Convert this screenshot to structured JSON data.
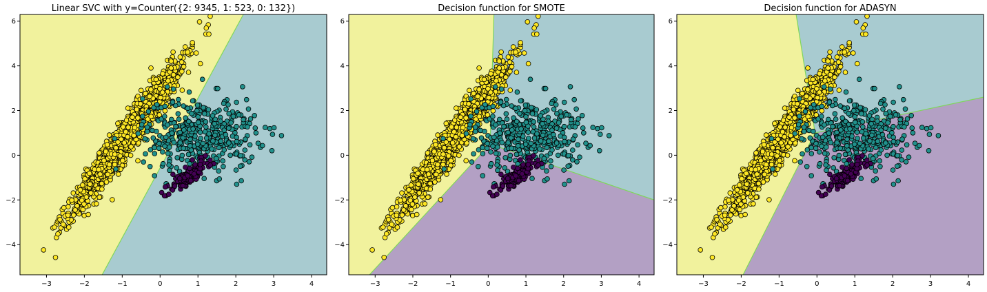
{
  "colors": {
    "yellow_region": "#f1f29d",
    "teal_region": "#a8cbd0",
    "purple_region": "#b3a0c4",
    "yellow_point": "#fde725",
    "teal_point": "#21918c",
    "purple_point": "#440154",
    "point_edge": "#000000",
    "boundary": "#7fd65a"
  },
  "chart_data": [
    {
      "type": "scatter",
      "title": "Linear SVC with y=Counter({2: 9345, 1: 523, 0: 132})",
      "xlim": [
        -3.7,
        4.4
      ],
      "ylim": [
        -5.35,
        6.3
      ],
      "xticks": [
        -3,
        -2,
        -1,
        0,
        1,
        2,
        3,
        4
      ],
      "yticks": [
        -4,
        -2,
        0,
        2,
        4,
        6
      ],
      "regions": [
        {
          "class": 2,
          "color": "#f1f29d",
          "polygon": [
            [
              -3.7,
              -5.35
            ],
            [
              -1.53,
              -5.35
            ],
            [
              2.2,
              6.3
            ],
            [
              -3.7,
              6.3
            ]
          ]
        },
        {
          "class": 1,
          "color": "#a8cbd0",
          "polygon": [
            [
              -1.53,
              -5.35
            ],
            [
              4.4,
              -5.35
            ],
            [
              4.4,
              6.3
            ],
            [
              2.2,
              6.3
            ]
          ]
        }
      ],
      "boundaries": [
        [
          [
            -1.53,
            -5.35
          ],
          [
            2.2,
            6.3
          ]
        ]
      ],
      "series": [
        {
          "class": 2,
          "color": "#fde725",
          "count": 9345
        },
        {
          "class": 1,
          "color": "#21918c",
          "count": 523
        },
        {
          "class": 0,
          "color": "#440154",
          "count": 132
        }
      ]
    },
    {
      "type": "scatter",
      "title": "Decision function for SMOTE",
      "xlim": [
        -3.7,
        4.4
      ],
      "ylim": [
        -5.35,
        6.3
      ],
      "xticks": [
        -3,
        -2,
        -1,
        0,
        1,
        2,
        3,
        4
      ],
      "yticks": [
        -4,
        -2,
        0,
        2,
        4,
        6
      ],
      "regions": [
        {
          "class": 2,
          "color": "#f1f29d",
          "polygon": [
            [
              -3.7,
              -5.35
            ],
            [
              -3.15,
              -5.35
            ],
            [
              0.05,
              0.5
            ],
            [
              0.15,
              6.3
            ],
            [
              -3.7,
              6.3
            ]
          ]
        },
        {
          "class": 1,
          "color": "#a8cbd0",
          "polygon": [
            [
              0.15,
              6.3
            ],
            [
              4.4,
              6.3
            ],
            [
              4.4,
              -2.0
            ],
            [
              0.05,
              0.5
            ]
          ]
        },
        {
          "class": 0,
          "color": "#b3a0c4",
          "polygon": [
            [
              -3.15,
              -5.35
            ],
            [
              4.4,
              -5.35
            ],
            [
              4.4,
              -2.0
            ],
            [
              0.05,
              0.5
            ]
          ]
        }
      ],
      "boundaries": [
        [
          [
            -3.15,
            -5.35
          ],
          [
            0.05,
            0.5
          ],
          [
            0.15,
            6.3
          ]
        ],
        [
          [
            0.05,
            0.5
          ],
          [
            4.4,
            -2.0
          ]
        ]
      ],
      "series": [
        {
          "class": 2,
          "color": "#fde725"
        },
        {
          "class": 1,
          "color": "#21918c"
        },
        {
          "class": 0,
          "color": "#440154"
        }
      ]
    },
    {
      "type": "scatter",
      "title": "Decision function for ADASYN",
      "xlim": [
        -3.7,
        4.4
      ],
      "ylim": [
        -5.35,
        6.3
      ],
      "xticks": [
        -3,
        -2,
        -1,
        0,
        1,
        2,
        3,
        4
      ],
      "yticks": [
        -4,
        -2,
        0,
        2,
        4,
        6
      ],
      "regions": [
        {
          "class": 2,
          "color": "#f1f29d",
          "polygon": [
            [
              -3.7,
              -5.35
            ],
            [
              -1.95,
              -5.35
            ],
            [
              -0.05,
              1.0
            ],
            [
              -0.55,
              6.3
            ],
            [
              -3.7,
              6.3
            ]
          ]
        },
        {
          "class": 1,
          "color": "#a8cbd0",
          "polygon": [
            [
              -0.55,
              6.3
            ],
            [
              4.4,
              6.3
            ],
            [
              4.4,
              2.6
            ],
            [
              -0.05,
              1.0
            ]
          ]
        },
        {
          "class": 0,
          "color": "#b3a0c4",
          "polygon": [
            [
              -1.95,
              -5.35
            ],
            [
              4.4,
              -5.35
            ],
            [
              4.4,
              2.6
            ],
            [
              -0.05,
              1.0
            ]
          ]
        }
      ],
      "boundaries": [
        [
          [
            -1.95,
            -5.35
          ],
          [
            -0.05,
            1.0
          ],
          [
            -0.55,
            6.3
          ]
        ],
        [
          [
            -0.05,
            1.0
          ],
          [
            4.4,
            2.6
          ]
        ]
      ],
      "series": [
        {
          "class": 2,
          "color": "#fde725"
        },
        {
          "class": 1,
          "color": "#21918c"
        },
        {
          "class": 0,
          "color": "#440154"
        }
      ]
    }
  ]
}
